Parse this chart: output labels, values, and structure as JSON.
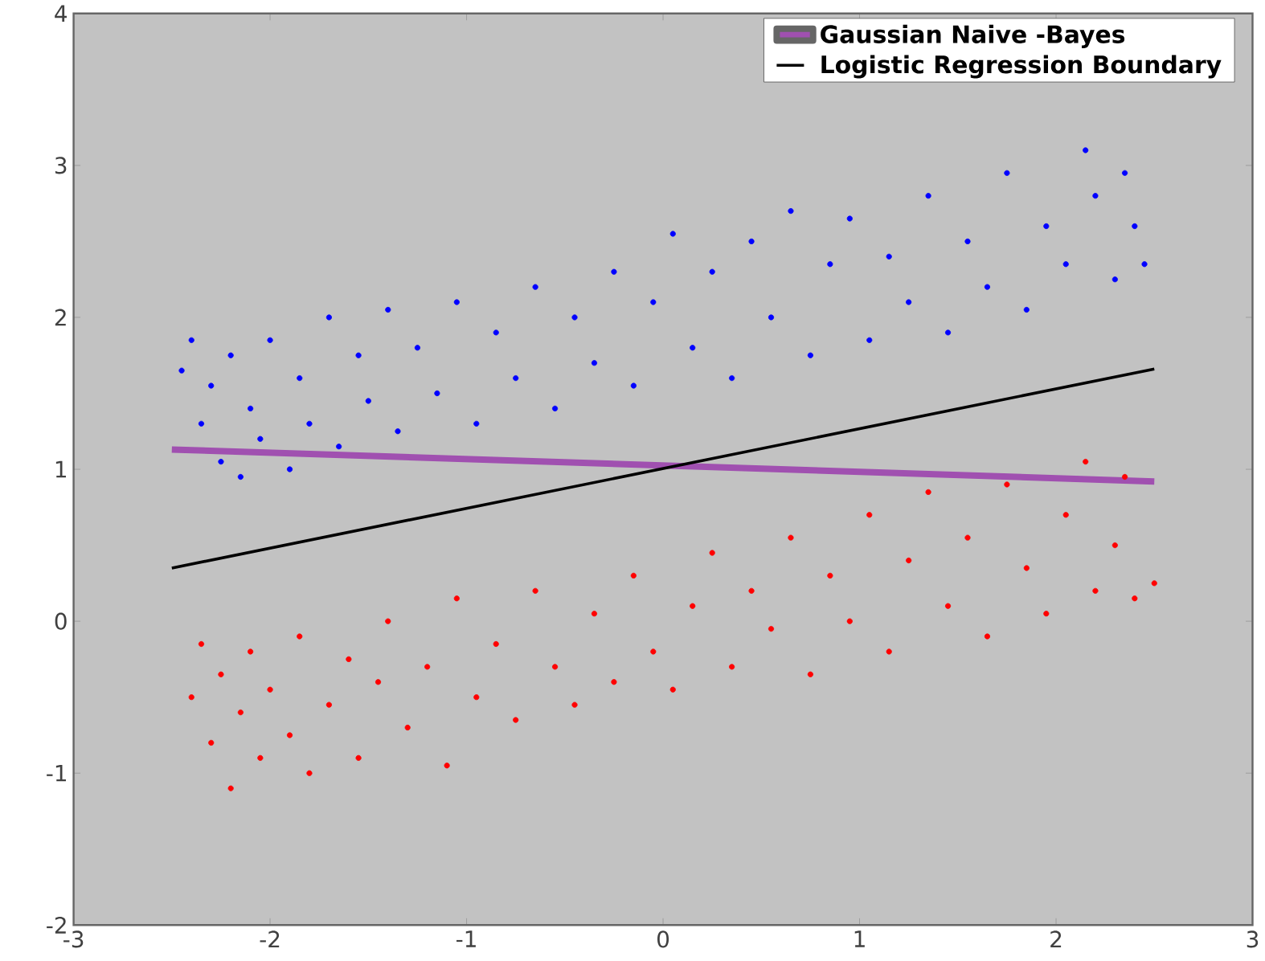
{
  "chart_data": {
    "type": "scatter",
    "xlim": [
      -3,
      3
    ],
    "ylim": [
      -2,
      4
    ],
    "xticks": [
      -3,
      -2,
      -1,
      0,
      1,
      2,
      3
    ],
    "yticks": [
      -2,
      -1,
      0,
      1,
      2,
      3,
      4
    ],
    "legend": "top right",
    "series": [
      {
        "marker": "circle",
        "color": "#0000ff",
        "x": [
          -2.45,
          -2.4,
          -2.35,
          -2.3,
          -2.25,
          -2.2,
          -2.15,
          -2.1,
          -2.05,
          -2.0,
          -1.9,
          -1.85,
          -1.8,
          -1.7,
          -1.65,
          -1.55,
          -1.5,
          -1.4,
          -1.35,
          -1.25,
          -1.15,
          -1.05,
          -0.95,
          -0.85,
          -0.75,
          -0.65,
          -0.55,
          -0.45,
          -0.35,
          -0.25,
          -0.15,
          -0.05,
          0.05,
          0.15,
          0.25,
          0.35,
          0.45,
          0.55,
          0.65,
          0.75,
          0.85,
          0.95,
          1.05,
          1.15,
          1.25,
          1.35,
          1.45,
          1.55,
          1.65,
          1.75,
          1.85,
          1.95,
          2.05,
          2.15,
          2.2,
          2.3,
          2.35,
          2.4,
          2.45
        ],
        "values": [
          1.65,
          1.85,
          1.3,
          1.55,
          1.05,
          1.75,
          0.95,
          1.4,
          1.2,
          1.85,
          1.0,
          1.6,
          1.3,
          2.0,
          1.15,
          1.75,
          1.45,
          2.05,
          1.25,
          1.8,
          1.5,
          2.1,
          1.3,
          1.9,
          1.6,
          2.2,
          1.4,
          2.0,
          1.7,
          2.3,
          1.55,
          2.1,
          2.55,
          1.8,
          2.3,
          1.6,
          2.5,
          2.0,
          2.7,
          1.75,
          2.35,
          2.65,
          1.85,
          2.4,
          2.1,
          2.8,
          1.9,
          2.5,
          2.2,
          2.95,
          2.05,
          2.6,
          2.35,
          3.1,
          2.8,
          2.25,
          2.95,
          2.6,
          2.35
        ]
      },
      {
        "marker": "circle",
        "color": "#ff0000",
        "x": [
          -2.4,
          -2.35,
          -2.3,
          -2.25,
          -2.2,
          -2.15,
          -2.1,
          -2.05,
          -2.0,
          -1.9,
          -1.85,
          -1.8,
          -1.7,
          -1.6,
          -1.55,
          -1.45,
          -1.4,
          -1.3,
          -1.2,
          -1.1,
          -1.05,
          -0.95,
          -0.85,
          -0.75,
          -0.65,
          -0.55,
          -0.45,
          -0.35,
          -0.25,
          -0.15,
          -0.05,
          0.05,
          0.15,
          0.25,
          0.35,
          0.45,
          0.55,
          0.65,
          0.75,
          0.85,
          0.95,
          1.05,
          1.15,
          1.25,
          1.35,
          1.45,
          1.55,
          1.65,
          1.75,
          1.85,
          1.95,
          2.05,
          2.15,
          2.2,
          2.3,
          2.35,
          2.4,
          2.5
        ],
        "values": [
          -0.5,
          -0.15,
          -0.8,
          -0.35,
          -1.1,
          -0.6,
          -0.2,
          -0.9,
          -0.45,
          -0.75,
          -0.1,
          -1.0,
          -0.55,
          -0.25,
          -0.9,
          -0.4,
          0.0,
          -0.7,
          -0.3,
          -0.95,
          0.15,
          -0.5,
          -0.15,
          -0.65,
          0.2,
          -0.3,
          -0.55,
          0.05,
          -0.4,
          0.3,
          -0.2,
          -0.45,
          0.1,
          0.45,
          -0.3,
          0.2,
          -0.05,
          0.55,
          -0.35,
          0.3,
          0.0,
          0.7,
          -0.2,
          0.4,
          0.85,
          0.1,
          0.55,
          -0.1,
          0.9,
          0.35,
          0.05,
          0.7,
          1.05,
          0.2,
          0.5,
          0.95,
          0.15,
          0.25
        ]
      },
      {
        "type": "line",
        "name": "Gaussian Naive -Bayes",
        "marker": "none",
        "line_style": "solid",
        "color": "#a050b0",
        "x": [
          -2.5,
          2.5
        ],
        "values": [
          1.13,
          0.92
        ]
      },
      {
        "type": "line",
        "name": "Logistic Regression Boundary",
        "marker": "none",
        "line_style": "solid",
        "color": "#000000",
        "x": [
          -2.5,
          2.5
        ],
        "values": [
          0.35,
          1.66
        ]
      }
    ]
  }
}
